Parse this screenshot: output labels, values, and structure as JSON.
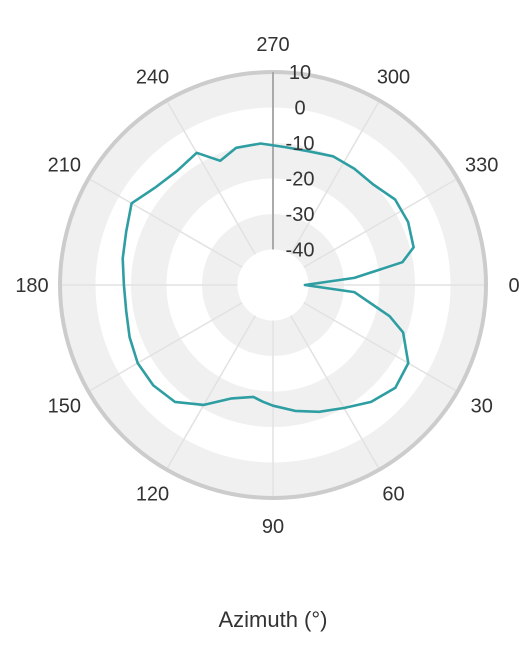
{
  "chart_data": {
    "type": "line",
    "subtype": "polar",
    "xlabel": "Azimuth (°)",
    "angle_ticks": [
      "0",
      "30",
      "60",
      "90",
      "120",
      "150",
      "180",
      "210",
      "240",
      "270",
      "300",
      "330"
    ],
    "radial_ticks": [
      "10",
      "0",
      "-10",
      "-20",
      "-30",
      "-40"
    ],
    "radial_range": [
      -50,
      10
    ],
    "angle_direction": "clockwise",
    "zero_position": "right",
    "grid": true,
    "series": [
      {
        "color": "#2e9ea3",
        "x": [
          0,
          5,
          15,
          20,
          30,
          40,
          50,
          60,
          70,
          80,
          90,
          95,
          100,
          110,
          120,
          130,
          140,
          150,
          160,
          170,
          180,
          190,
          200,
          210,
          220,
          230,
          240,
          247,
          255,
          265,
          275,
          285,
          295,
          305,
          315,
          325,
          335,
          345,
          350,
          355,
          360
        ],
        "y": [
          -41,
          -27,
          -16,
          -11,
          -6,
          -5,
          -7,
          -10,
          -12,
          -14,
          -16,
          -17,
          -18,
          -16,
          -11,
          -7,
          -6,
          -6,
          -7,
          -8,
          -8,
          -7,
          -6,
          -4,
          -7,
          -8,
          -7,
          -12,
          -10,
          -10,
          -11,
          -11,
          -10,
          -10,
          -10,
          -8,
          -8,
          -9,
          -13,
          -27,
          -41
        ]
      }
    ]
  }
}
